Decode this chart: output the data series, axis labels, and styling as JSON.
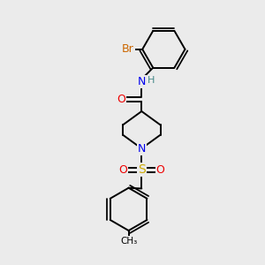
{
  "bg_color": "#ebebeb",
  "bond_color": "#000000",
  "bond_width": 1.4,
  "atom_colors": {
    "C": "#000000",
    "N": "#0000ee",
    "O": "#ee0000",
    "S": "#ccaa00",
    "Br": "#cc6600",
    "H": "#448888"
  },
  "font_size": 8,
  "fig_size": [
    3.0,
    3.0
  ],
  "dpi": 100
}
